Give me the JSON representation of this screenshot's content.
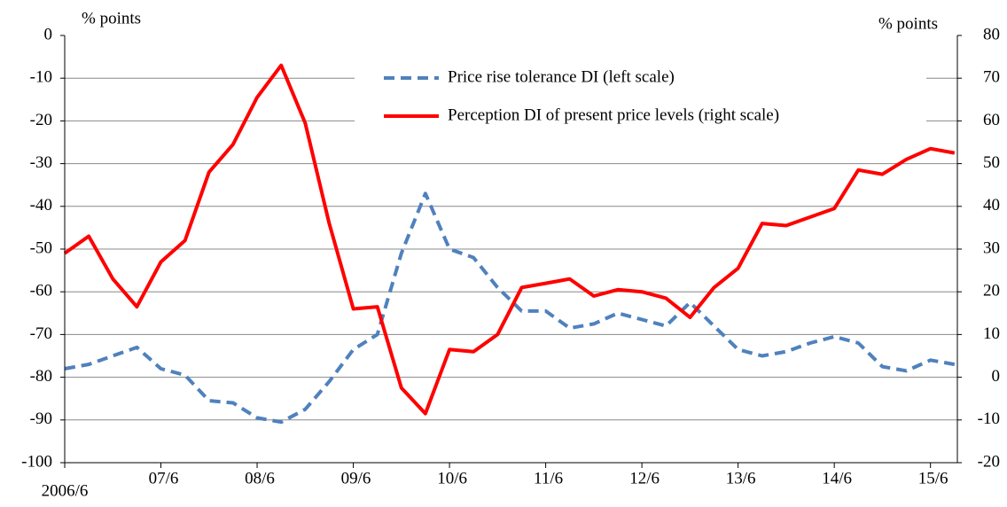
{
  "chart_data": {
    "type": "line",
    "y_label": "% points",
    "y2_label": "% points",
    "categories": [
      "2006/6",
      null,
      null,
      null,
      "07/6",
      null,
      null,
      null,
      "08/6",
      null,
      null,
      null,
      "09/6",
      null,
      null,
      null,
      "10/6",
      null,
      null,
      null,
      "11/6",
      null,
      null,
      null,
      "12/6",
      null,
      null,
      null,
      "13/6",
      null,
      null,
      null,
      "14/6",
      null,
      null,
      null,
      "15/6",
      null
    ],
    "series": [
      {
        "name": "Price rise tolerance DI (left scale)",
        "color": "#4f81bd",
        "dash": true,
        "values": [
          -78,
          -77,
          -75,
          -73,
          -78,
          -79.5,
          -85.5,
          -86,
          -89.5,
          -90.5,
          -87.5,
          -81,
          -73.5,
          -70,
          -51,
          -37,
          -50,
          -52,
          -59,
          -64.5,
          -64.5,
          -68.5,
          -67.5,
          -65,
          -66.5,
          -68,
          -62.5,
          -68,
          -73.5,
          -75,
          -74,
          -72,
          -70.5,
          -72,
          -77.5,
          -78.5,
          -76,
          -77
        ]
      },
      {
        "name": "Perception DI of present price levels (right scale)",
        "color": "#ff0000",
        "axis": "y2",
        "values": [
          29,
          33,
          23,
          16.5,
          27,
          32,
          48,
          54.5,
          65.5,
          73,
          59.5,
          36,
          16,
          16.5,
          -2.5,
          -8.5,
          6.5,
          6,
          10,
          21,
          22,
          23,
          19,
          20.5,
          20,
          18.5,
          14,
          21,
          25.5,
          36,
          35.5,
          37.5,
          39.5,
          48.5,
          47.5,
          51,
          53.5,
          52.5
        ]
      }
    ],
    "ylim": [
      -100,
      0
    ],
    "yticks": [
      0,
      -10,
      -20,
      -30,
      -40,
      -50,
      -60,
      -70,
      -80,
      -90,
      -100
    ],
    "y2lim": [
      -20,
      80
    ],
    "y2ticks": [
      80,
      70,
      60,
      50,
      40,
      30,
      20,
      10,
      0,
      -10,
      -20
    ],
    "grid": true
  }
}
